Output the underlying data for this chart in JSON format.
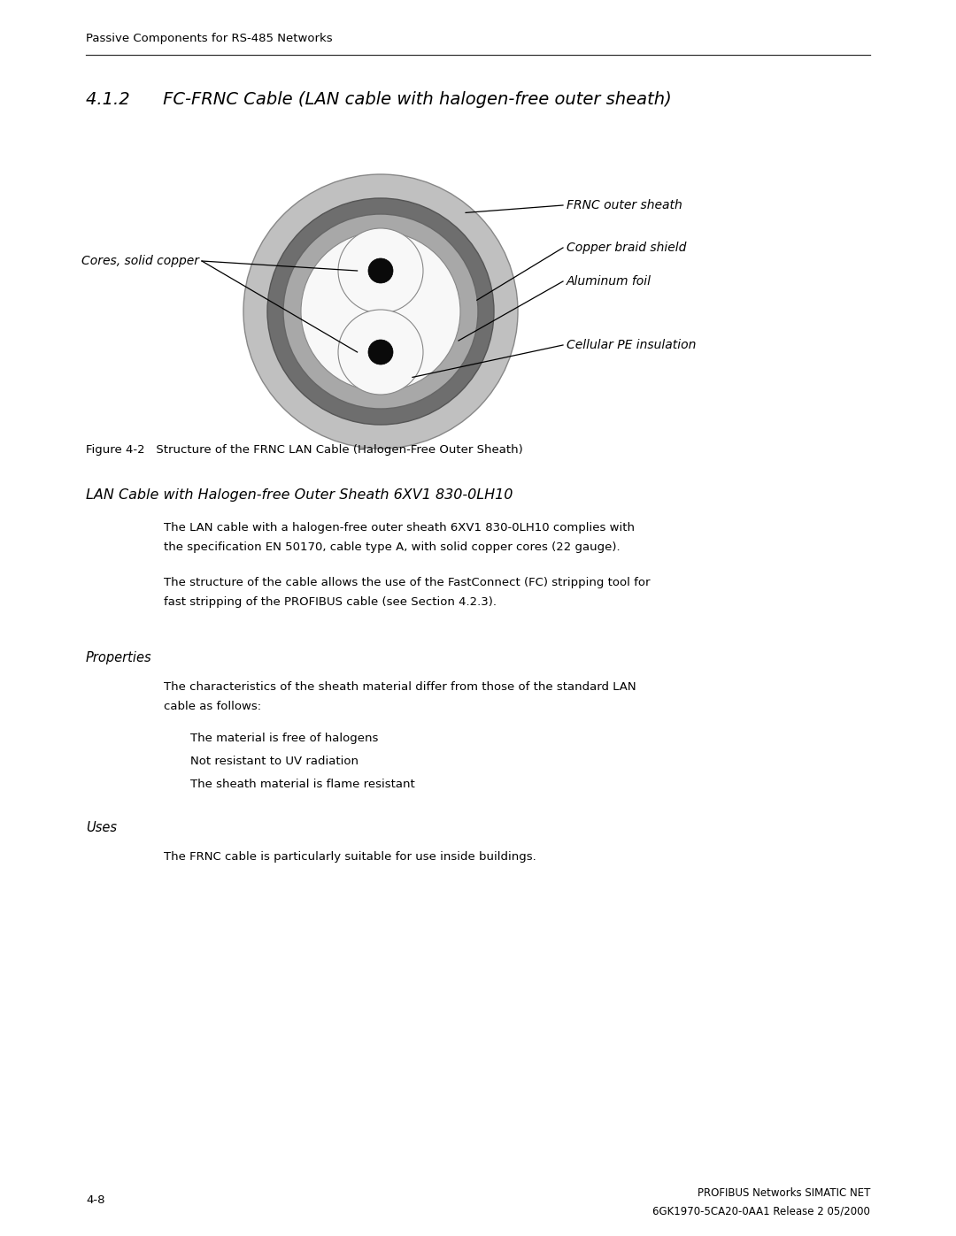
{
  "page_header": "Passive Components for RS-485 Networks",
  "section_title": "4.1.2      FC-FRNC Cable (LAN cable with halogen-free outer sheath)",
  "figure_caption_bold": "Figure 4-2",
  "figure_caption_normal": "   Structure of the FRNC LAN Cable (Halogen-Free Outer Sheath)",
  "subsection_title": "LAN Cable with Halogen-free Outer Sheath 6XV1 830-0LH10",
  "para1_line1": "The LAN cable with a halogen-free outer sheath 6XV1 830-0LH10 complies with",
  "para1_line2": "the specification EN 50170, cable type A, with solid copper cores (22 gauge).",
  "para2_line1": "The structure of the cable allows the use of the FastConnect (FC) stripping tool for",
  "para2_line2": "fast stripping of the PROFIBUS cable (see Section 4.2.3).",
  "properties_heading": "Properties",
  "properties_para_line1": "The characteristics of the sheath material differ from those of the standard LAN",
  "properties_para_line2": "cable as follows:",
  "bullet1": "The material is free of halogens",
  "bullet2": "Not resistant to UV radiation",
  "bullet3": "The sheath material is flame resistant",
  "uses_heading": "Uses",
  "uses_para": "The FRNC cable is particularly suitable for use inside buildings.",
  "footer_left": "4-8",
  "footer_right_line1": "PROFIBUS Networks SIMATIC NET",
  "footer_right_line2": "6GK1970-5CA20-0AA1 Release 2 05/2000",
  "bg_color": "#ffffff",
  "text_color": "#000000",
  "gray_outer": "#c0c0c0",
  "gray_dark": "#6e6e6e",
  "gray_mid": "#a8a8a8",
  "gray_light": "#d8d8d8",
  "white_inner": "#f8f8f8",
  "label_frnc": "FRNC outer sheath",
  "label_copper": "Copper braid shield",
  "label_alum": "Aluminum foil",
  "label_pe": "Cellular PE insulation",
  "label_cores": "Cores, solid copper"
}
